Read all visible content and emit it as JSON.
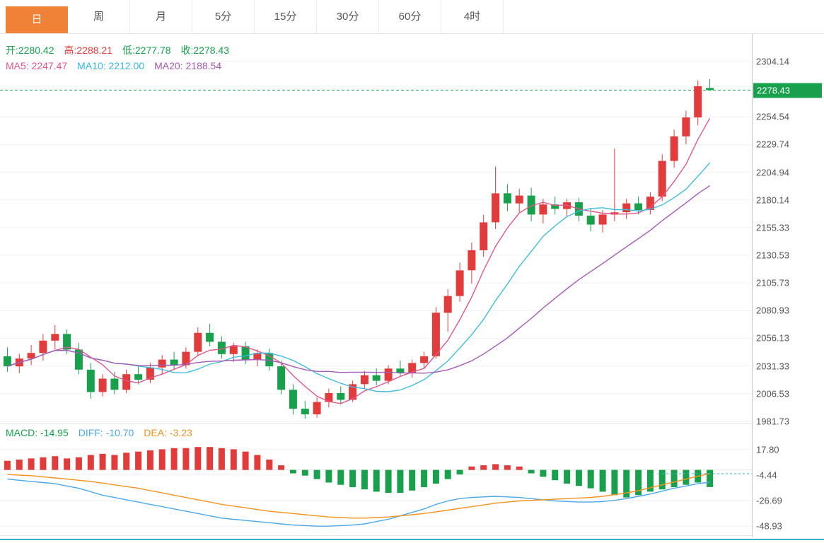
{
  "tabs": {
    "items": [
      {
        "name": "tab-day",
        "label": "日",
        "active": true
      },
      {
        "name": "tab-week",
        "label": "周",
        "active": false
      },
      {
        "name": "tab-month",
        "label": "月",
        "active": false
      },
      {
        "name": "tab-5min",
        "label": "5分",
        "active": false
      },
      {
        "name": "tab-15min",
        "label": "15分",
        "active": false
      },
      {
        "name": "tab-30min",
        "label": "30分",
        "active": false
      },
      {
        "name": "tab-60min",
        "label": "60分",
        "active": false
      },
      {
        "name": "tab-4hour",
        "label": "4时",
        "active": false
      }
    ]
  },
  "info": {
    "ohlc": [
      {
        "name": "open-value",
        "text": "开:2280.42",
        "color": "#18a04d"
      },
      {
        "name": "high-value",
        "text": "高:2288.21",
        "color": "#e23b3b"
      },
      {
        "name": "low-value",
        "text": "低:2277.78",
        "color": "#18a04d"
      },
      {
        "name": "close-value",
        "text": "收:2278.43",
        "color": "#18a04d"
      }
    ],
    "ma": [
      {
        "name": "ma5-value",
        "text": "MA5: 2247.47",
        "color": "#e0568c"
      },
      {
        "name": "ma10-value",
        "text": "MA10: 2212.00",
        "color": "#38b6e0"
      },
      {
        "name": "ma20-value",
        "text": "MA20: 2188.54",
        "color": "#a45ab4"
      }
    ],
    "macd": [
      {
        "name": "macd-value",
        "text": "MACD: -14.95",
        "color": "#18a04d"
      },
      {
        "name": "diff-value",
        "text": "DIFF: -10.70",
        "color": "#4aa8e8"
      },
      {
        "name": "dea-value",
        "text": "DEA: -3.23",
        "color": "#f5921e"
      }
    ]
  },
  "price_axis": {
    "badge": "2278.43",
    "tick_labels": [
      "2304.14",
      "2254.54",
      "2229.74",
      "2204.94",
      "2180.14",
      "2155.33",
      "2130.53",
      "2105.73",
      "2080.93",
      "2056.13",
      "2031.33",
      "2006.53",
      "1981.73"
    ]
  },
  "macd_axis": {
    "tick_labels": [
      "17.80",
      "-4.44",
      "-26.69",
      "-48.93"
    ]
  },
  "colors": {
    "up": "#e23b3b",
    "down": "#18a04d",
    "ma5": "#e0568c",
    "ma10": "#3fbcdc",
    "ma20": "#a45ab4",
    "diff": "#4aa8e8",
    "dea": "#f5921e",
    "tab_active": "#f08238",
    "grid": "#f1f1f1",
    "axis_text": "#555555",
    "dashed_teal": "#3bb8c8"
  },
  "chart_data": {
    "type": "candlestick",
    "title": "",
    "xlabel": "",
    "ylabel": "",
    "legend": [
      "MA5",
      "MA10",
      "MA20",
      "MACD",
      "DIFF",
      "DEA"
    ],
    "price_panel": {
      "axis_range": [
        1980.4,
        2328.8
      ],
      "ticks": [
        2304.14,
        2254.54,
        2229.74,
        2204.94,
        2180.14,
        2155.33,
        2130.53,
        2105.73,
        2080.93,
        2056.13,
        2031.33,
        2006.53,
        1981.73
      ],
      "current_price": 2278.43,
      "ma_periods": [
        5,
        10,
        20
      ],
      "ma_last": {
        "ma5": 2247.47,
        "ma10": 2212.0,
        "ma20": 2188.54
      },
      "last_candle": {
        "open": 2280.42,
        "high": 2288.21,
        "low": 2277.78,
        "close": 2278.43
      },
      "candles": [
        [
          2040,
          2048,
          2026,
          2031
        ],
        [
          2031,
          2042,
          2025,
          2038
        ],
        [
          2038,
          2050,
          2032,
          2043
        ],
        [
          2043,
          2060,
          2036,
          2054
        ],
        [
          2054,
          2068,
          2046,
          2060
        ],
        [
          2060,
          2064,
          2042,
          2046
        ],
        [
          2046,
          2052,
          2024,
          2028
        ],
        [
          2028,
          2034,
          2002,
          2008
        ],
        [
          2008,
          2024,
          2004,
          2020
        ],
        [
          2020,
          2026,
          2006,
          2010
        ],
        [
          2010,
          2028,
          2007,
          2024
        ],
        [
          2024,
          2032,
          2015,
          2019
        ],
        [
          2019,
          2034,
          2016,
          2030
        ],
        [
          2030,
          2041,
          2024,
          2037
        ],
        [
          2037,
          2044,
          2028,
          2032
        ],
        [
          2032,
          2048,
          2029,
          2044
        ],
        [
          2044,
          2066,
          2040,
          2061
        ],
        [
          2061,
          2069,
          2049,
          2053
        ],
        [
          2053,
          2058,
          2038,
          2042
        ],
        [
          2042,
          2052,
          2035,
          2049
        ],
        [
          2049,
          2053,
          2033,
          2037
        ],
        [
          2037,
          2046,
          2031,
          2043
        ],
        [
          2043,
          2047,
          2027,
          2031
        ],
        [
          2031,
          2036,
          2006,
          2010
        ],
        [
          2010,
          2015,
          1988,
          1993
        ],
        [
          1993,
          2000,
          1984,
          1988
        ],
        [
          1988,
          2003,
          1985,
          1999
        ],
        [
          1999,
          2011,
          1994,
          2007
        ],
        [
          2007,
          2013,
          1997,
          2001
        ],
        [
          2001,
          2018,
          1999,
          2015
        ],
        [
          2015,
          2027,
          2011,
          2023
        ],
        [
          2023,
          2029,
          2014,
          2018
        ],
        [
          2018,
          2032,
          2015,
          2029
        ],
        [
          2029,
          2036,
          2022,
          2025
        ],
        [
          2025,
          2037,
          2021,
          2034
        ],
        [
          2034,
          2044,
          2029,
          2040
        ],
        [
          2040,
          2084,
          2038,
          2079
        ],
        [
          2079,
          2100,
          2062,
          2094
        ],
        [
          2094,
          2124,
          2089,
          2117
        ],
        [
          2117,
          2142,
          2105,
          2135
        ],
        [
          2135,
          2167,
          2129,
          2160
        ],
        [
          2160,
          2210,
          2154,
          2186
        ],
        [
          2186,
          2194,
          2170,
          2177
        ],
        [
          2177,
          2190,
          2169,
          2184
        ],
        [
          2184,
          2191,
          2161,
          2167
        ],
        [
          2167,
          2181,
          2159,
          2176
        ],
        [
          2176,
          2183,
          2167,
          2172
        ],
        [
          2172,
          2181,
          2165,
          2178
        ],
        [
          2178,
          2182,
          2161,
          2166
        ],
        [
          2166,
          2173,
          2152,
          2158
        ],
        [
          2158,
          2171,
          2151,
          2167
        ],
        [
          2167,
          2226,
          2161,
          2169
        ],
        [
          2169,
          2181,
          2163,
          2177
        ],
        [
          2177,
          2183,
          2167,
          2171
        ],
        [
          2171,
          2187,
          2167,
          2183
        ],
        [
          2183,
          2221,
          2179,
          2215
        ],
        [
          2215,
          2243,
          2209,
          2237
        ],
        [
          2237,
          2260,
          2230,
          2254
        ],
        [
          2254,
          2287,
          2247,
          2282
        ],
        [
          2280.42,
          2288.21,
          2277.78,
          2278.43
        ]
      ]
    },
    "macd_panel": {
      "axis_range": [
        -57.5,
        39.2
      ],
      "ticks": [
        17.8,
        -4.44,
        -26.69,
        -48.93
      ],
      "current": {
        "macd": -14.95,
        "diff": -10.7,
        "dea": -3.23
      },
      "hist": [
        8,
        9,
        10,
        11,
        12,
        10,
        11,
        13,
        14,
        13,
        15,
        16,
        17,
        18,
        19,
        19,
        20,
        20,
        19,
        18,
        16,
        13,
        9,
        4,
        -3,
        -5,
        -8,
        -11,
        -13,
        -15,
        -17,
        -19,
        -20,
        -20,
        -18,
        -15,
        -12,
        -8,
        -4,
        3,
        4,
        5,
        4,
        3,
        -3,
        -6,
        -9,
        -12,
        -14,
        -16,
        -19,
        -22,
        -24,
        -22,
        -19,
        -17,
        -15,
        -13,
        -11,
        -14.95
      ],
      "diff": [
        -8,
        -9,
        -10,
        -11,
        -12,
        -14,
        -16,
        -19,
        -22,
        -24,
        -26,
        -28,
        -30,
        -32,
        -34,
        -36,
        -38,
        -40,
        -42,
        -43,
        -44,
        -45,
        -46,
        -47,
        -48,
        -48.5,
        -49,
        -49,
        -48.5,
        -48,
        -47,
        -45,
        -43,
        -40,
        -37,
        -34,
        -30,
        -27,
        -25,
        -24,
        -23.5,
        -23,
        -23.5,
        -24,
        -25,
        -26,
        -27,
        -27.5,
        -28,
        -28,
        -27.5,
        -26.5,
        -25,
        -23,
        -21,
        -18.5,
        -16,
        -14,
        -12,
        -10.7
      ],
      "dea": [
        -4,
        -4.5,
        -5,
        -6,
        -7,
        -8,
        -9,
        -10,
        -11.5,
        -13,
        -14.5,
        -16,
        -18,
        -20,
        -22,
        -24,
        -26,
        -28,
        -30,
        -31.5,
        -33,
        -34.5,
        -36,
        -37,
        -38,
        -39,
        -40,
        -41,
        -41.5,
        -42,
        -42,
        -41.5,
        -41,
        -40,
        -39,
        -38,
        -36.5,
        -35,
        -33.5,
        -32,
        -30.5,
        -29,
        -28,
        -27,
        -26.5,
        -26,
        -25.5,
        -25,
        -24.5,
        -24,
        -23,
        -21.5,
        -20,
        -18,
        -15.5,
        -13,
        -10.5,
        -8,
        -5.5,
        -3.23
      ]
    }
  }
}
